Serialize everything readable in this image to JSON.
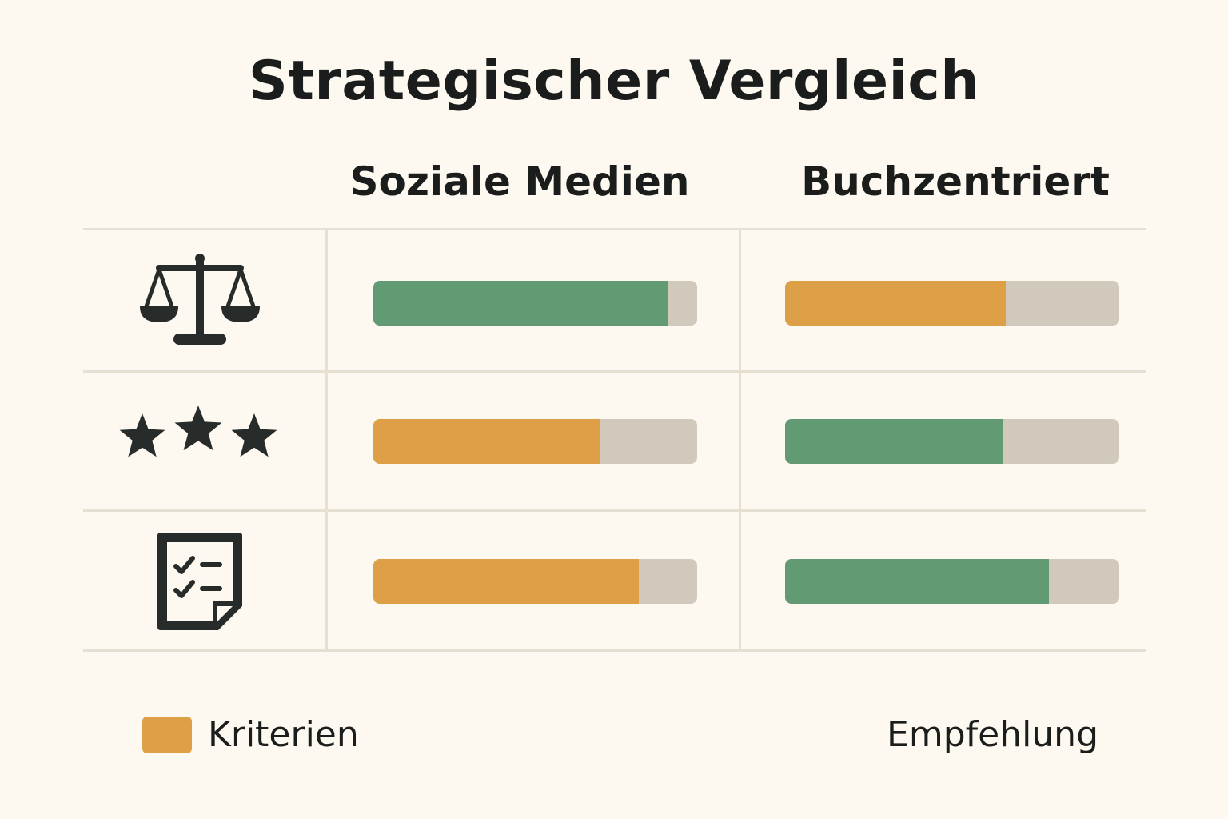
{
  "title": "Strategischer Vergleich",
  "colors": {
    "green": "#629a74",
    "orange": "#dea047",
    "track": "#d1c9bc",
    "icon": "#272b2a"
  },
  "chart_data": {
    "type": "bar",
    "title": "Strategischer Vergleich",
    "columns": [
      "Soziale Medien",
      "Buchzentriert"
    ],
    "xlim": [
      0,
      1
    ],
    "rows": [
      {
        "icon": "balance-scale-icon",
        "cells": [
          {
            "value": 0.91,
            "color": "green"
          },
          {
            "value": 0.66,
            "color": "orange"
          }
        ]
      },
      {
        "icon": "three-stars-icon",
        "cells": [
          {
            "value": 0.7,
            "color": "orange"
          },
          {
            "value": 0.65,
            "color": "green"
          }
        ]
      },
      {
        "icon": "checklist-document-icon",
        "cells": [
          {
            "value": 0.82,
            "color": "orange"
          },
          {
            "value": 0.79,
            "color": "green"
          }
        ]
      }
    ],
    "legend": [
      {
        "label": "Kriterien",
        "color": "orange",
        "position": "bottom-left"
      },
      {
        "label": "Empfehlung",
        "position": "bottom-right"
      }
    ]
  }
}
